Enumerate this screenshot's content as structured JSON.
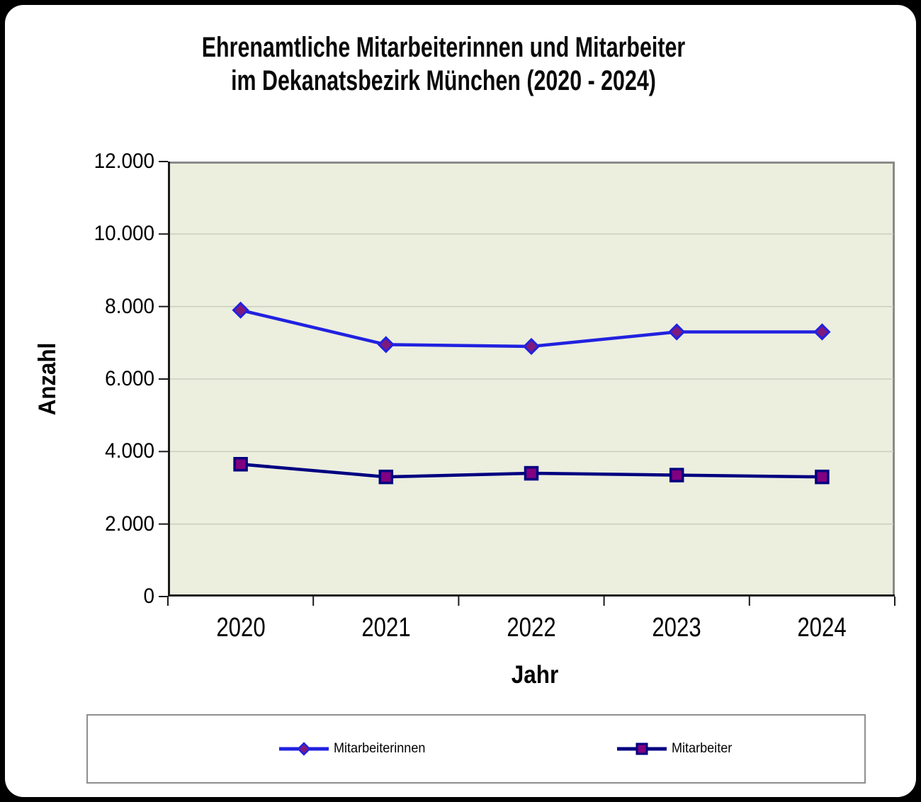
{
  "chart_data": {
    "type": "line",
    "title": "Ehrenamtliche Mitarbeiterinnen und Mitarbeiter im Dekanatsbezirk München (2020 - 2024)",
    "title_lines": [
      "Ehrenamtliche Mitarbeiterinnen und Mitarbeiter",
      "im Dekanatsbezirk München (2020 - 2024)"
    ],
    "xlabel": "Jahr",
    "ylabel": "Anzahl",
    "categories": [
      "2020",
      "2021",
      "2022",
      "2023",
      "2024"
    ],
    "series": [
      {
        "name": "Mitarbeiterinnen",
        "values": [
          7900,
          6950,
          6900,
          7300,
          7300
        ],
        "marker": "diamond",
        "line_color": "#2121e0",
        "marker_fill": "#7d1a7d",
        "marker_stroke": "#2121e0"
      },
      {
        "name": "Mitarbeiter",
        "values": [
          3650,
          3300,
          3400,
          3350,
          3300
        ],
        "marker": "square",
        "line_color": "#000080",
        "marker_fill": "#800080",
        "marker_stroke": "#000080"
      }
    ],
    "ylim": [
      0,
      12000
    ],
    "ytick_step": 2000,
    "ytick_labels": [
      "0",
      "2.000",
      "4.000",
      "6.000",
      "8.000",
      "10.000",
      "12.000"
    ],
    "grid": "horizontal-major",
    "legend_position": "bottom",
    "plot_bg": "#eceede",
    "grid_color": "#cdd0c0",
    "axis_color": "#1a1a1a",
    "plot_border_color": "#8a8a8a"
  }
}
